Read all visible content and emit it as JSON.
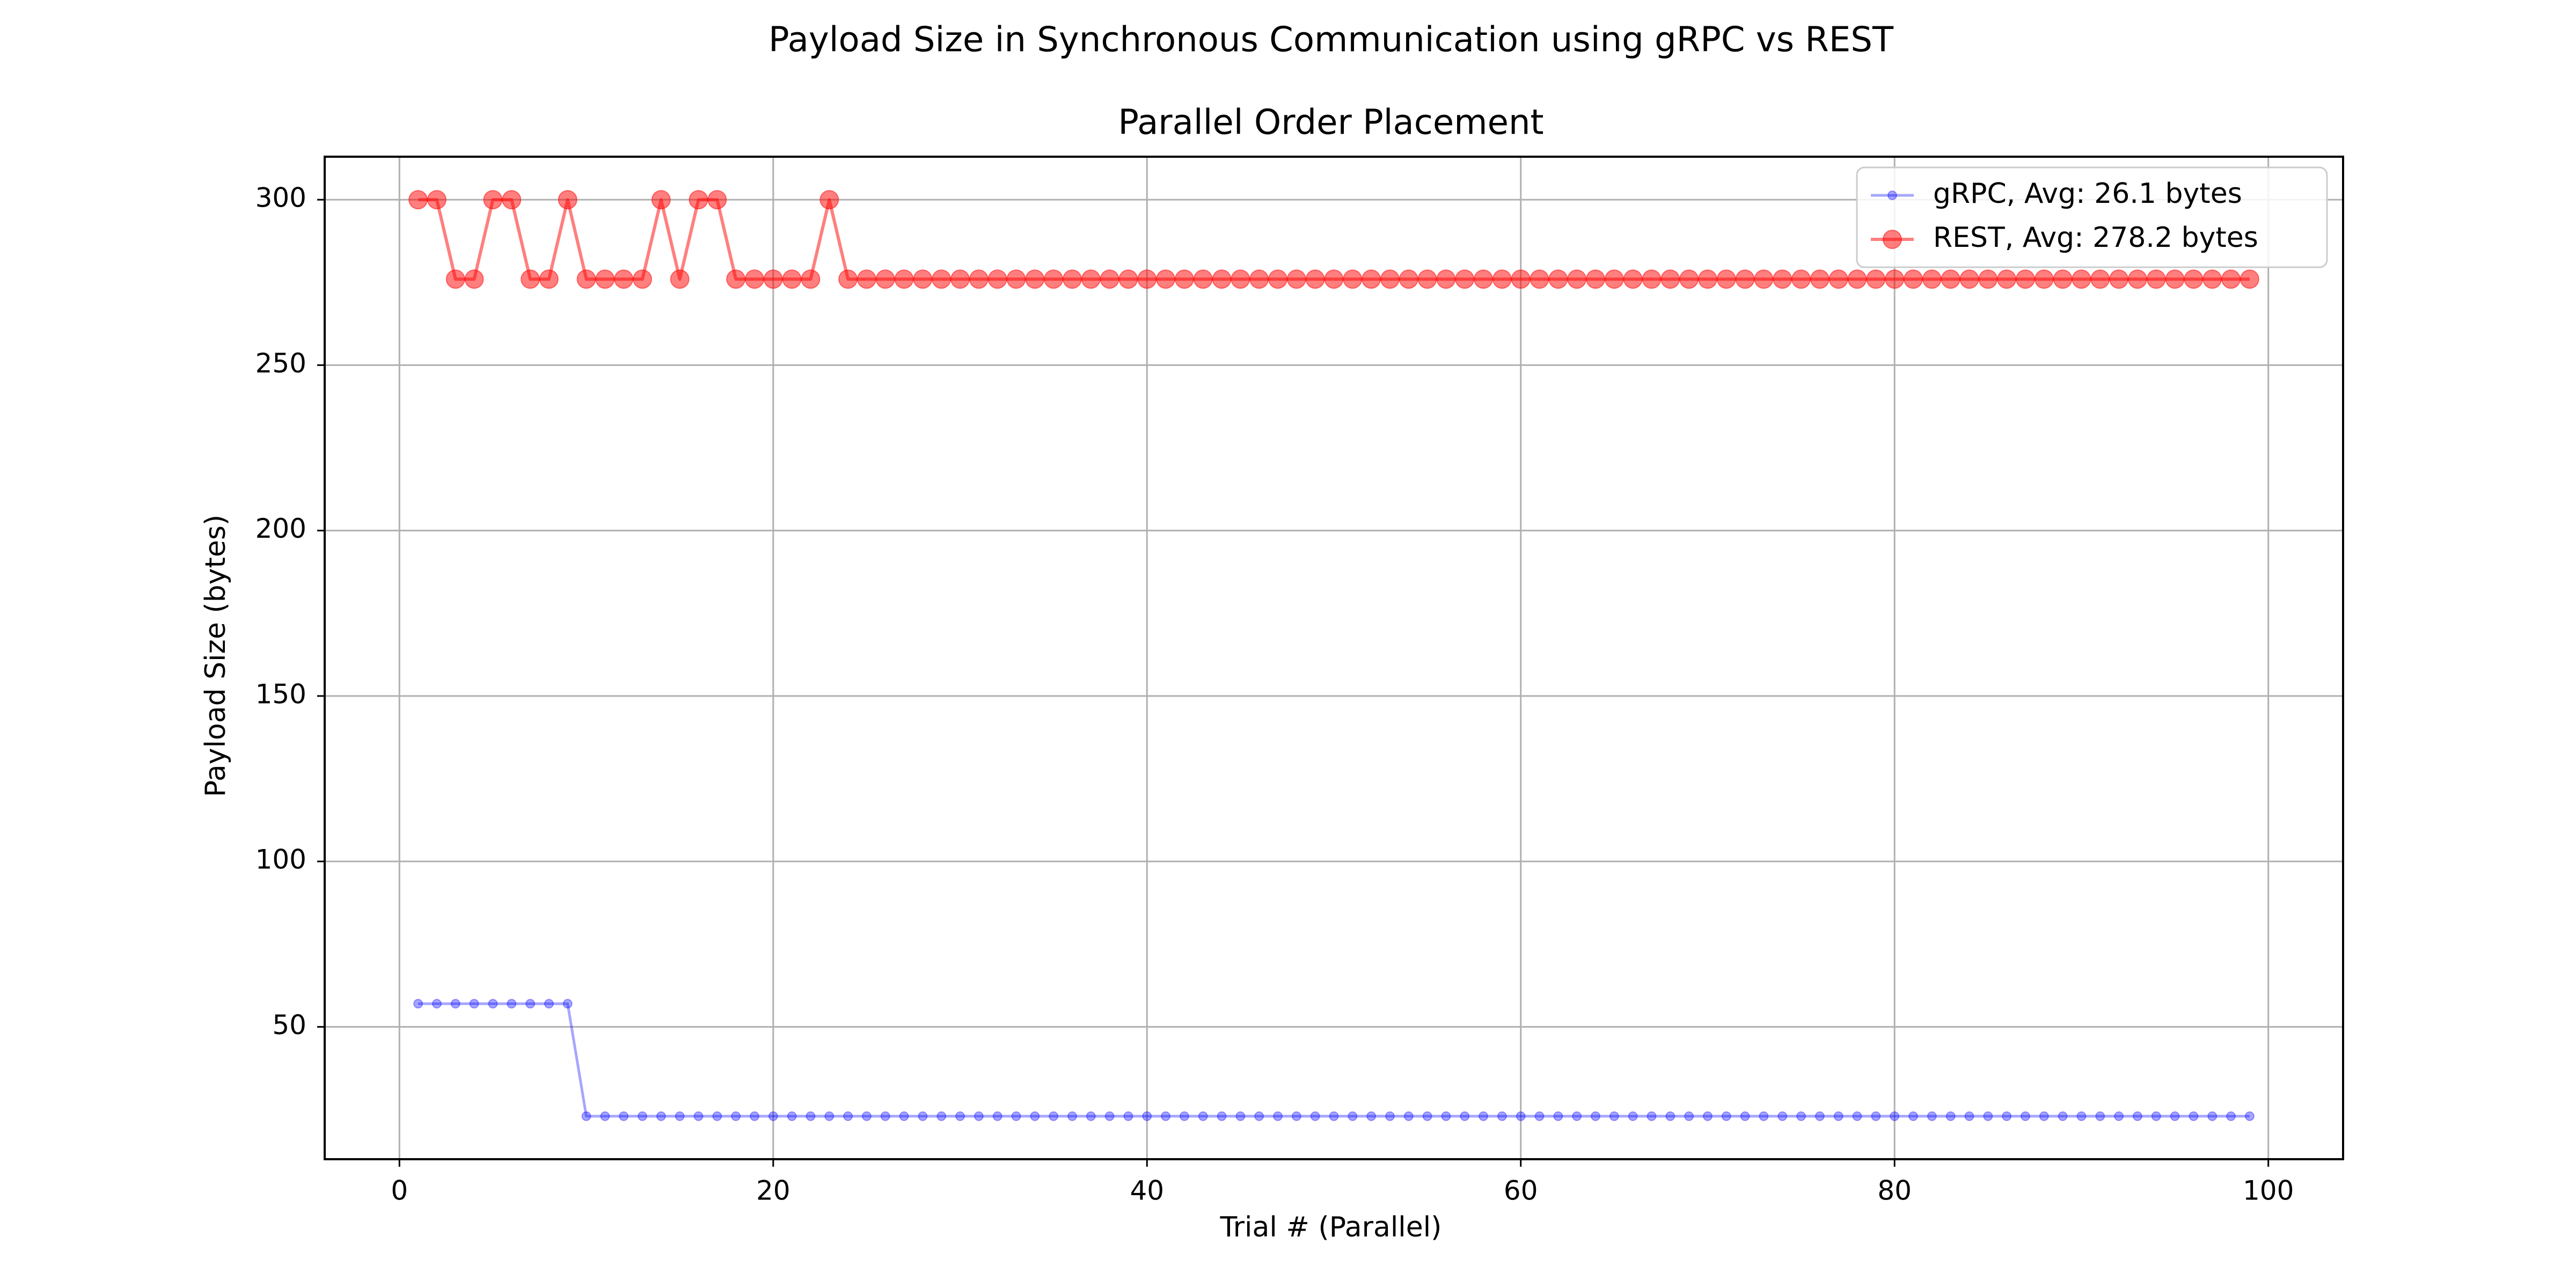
{
  "figure": {
    "suptitle": "Payload Size in Synchronous Communication using gRPC vs REST"
  },
  "chart_data": {
    "type": "line",
    "title": "Parallel Order Placement",
    "xlabel": "Trial # (Parallel)",
    "ylabel": "Payload Size (bytes)",
    "xlim": [
      -4,
      104
    ],
    "ylim": [
      10,
      313
    ],
    "xticks": [
      0,
      20,
      40,
      60,
      80,
      100
    ],
    "yticks": [
      50,
      100,
      150,
      200,
      250,
      300
    ],
    "grid": true,
    "legend_position": "top-right",
    "x": [
      1,
      2,
      3,
      4,
      5,
      6,
      7,
      8,
      9,
      10,
      11,
      12,
      13,
      14,
      15,
      16,
      17,
      18,
      19,
      20,
      21,
      22,
      23,
      24,
      25,
      26,
      27,
      28,
      29,
      30,
      31,
      32,
      33,
      34,
      35,
      36,
      37,
      38,
      39,
      40,
      41,
      42,
      43,
      44,
      45,
      46,
      47,
      48,
      49,
      50,
      51,
      52,
      53,
      54,
      55,
      56,
      57,
      58,
      59,
      60,
      61,
      62,
      63,
      64,
      65,
      66,
      67,
      68,
      69,
      70,
      71,
      72,
      73,
      74,
      75,
      76,
      77,
      78,
      79,
      80,
      81,
      82,
      83,
      84,
      85,
      86,
      87,
      88,
      89,
      90,
      91,
      92,
      93,
      94,
      95,
      96,
      97,
      98,
      99
    ],
    "series": [
      {
        "name": "gRPC, Avg: 26.1 bytes",
        "color": "#0000ff",
        "marker": "small-dot",
        "values": [
          57,
          57,
          57,
          57,
          57,
          57,
          57,
          57,
          57,
          23,
          23,
          23,
          23,
          23,
          23,
          23,
          23,
          23,
          23,
          23,
          23,
          23,
          23,
          23,
          23,
          23,
          23,
          23,
          23,
          23,
          23,
          23,
          23,
          23,
          23,
          23,
          23,
          23,
          23,
          23,
          23,
          23,
          23,
          23,
          23,
          23,
          23,
          23,
          23,
          23,
          23,
          23,
          23,
          23,
          23,
          23,
          23,
          23,
          23,
          23,
          23,
          23,
          23,
          23,
          23,
          23,
          23,
          23,
          23,
          23,
          23,
          23,
          23,
          23,
          23,
          23,
          23,
          23,
          23,
          23,
          23,
          23,
          23,
          23,
          23,
          23,
          23,
          23,
          23,
          23,
          23,
          23,
          23,
          23,
          23,
          23,
          23,
          23,
          23
        ]
      },
      {
        "name": "REST, Avg: 278.2 bytes",
        "color": "#ff0000",
        "marker": "large-dot",
        "values": [
          300,
          300,
          276,
          276,
          300,
          300,
          276,
          276,
          300,
          276,
          276,
          276,
          276,
          300,
          276,
          300,
          300,
          276,
          276,
          276,
          276,
          276,
          300,
          276,
          276,
          276,
          276,
          276,
          276,
          276,
          276,
          276,
          276,
          276,
          276,
          276,
          276,
          276,
          276,
          276,
          276,
          276,
          276,
          276,
          276,
          276,
          276,
          276,
          276,
          276,
          276,
          276,
          276,
          276,
          276,
          276,
          276,
          276,
          276,
          276,
          276,
          276,
          276,
          276,
          276,
          276,
          276,
          276,
          276,
          276,
          276,
          276,
          276,
          276,
          276,
          276,
          276,
          276,
          276,
          276,
          276,
          276,
          276,
          276,
          276,
          276,
          276,
          276,
          276,
          276,
          276,
          276,
          276,
          276,
          276,
          276,
          276,
          276,
          276
        ]
      }
    ]
  }
}
